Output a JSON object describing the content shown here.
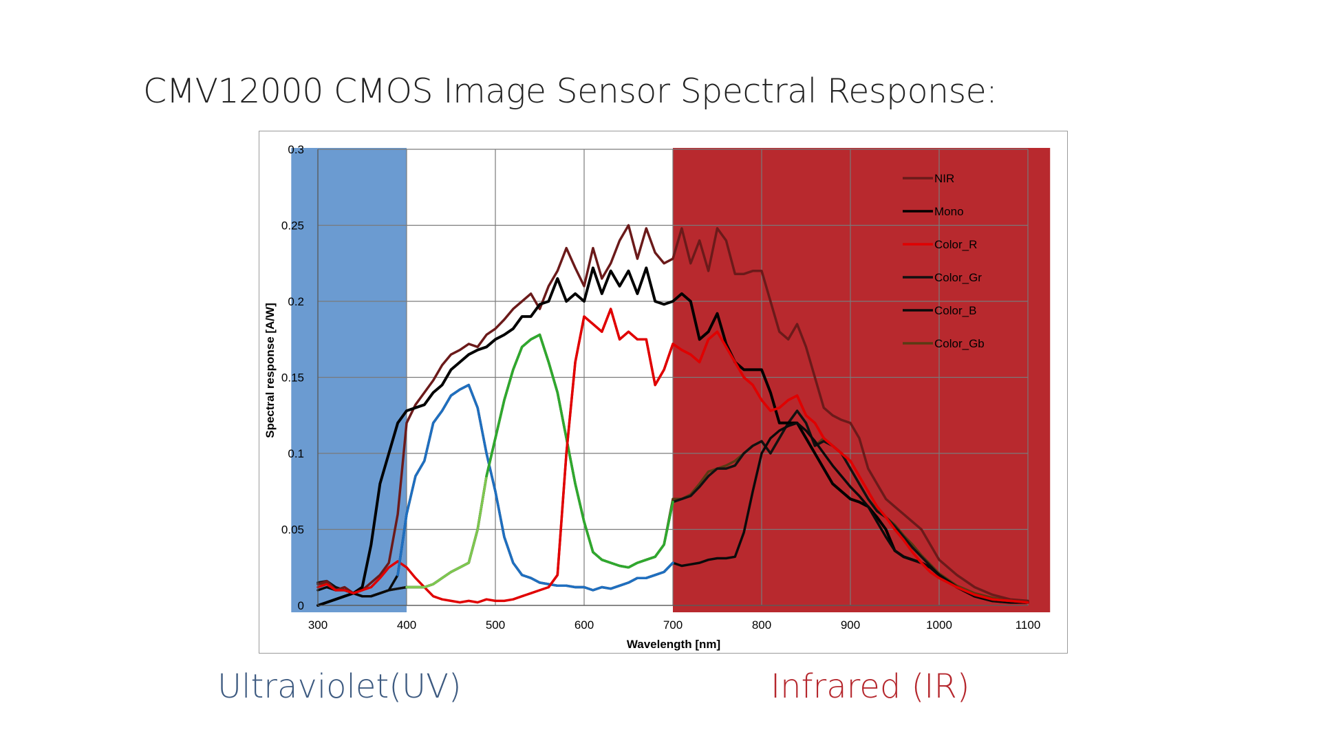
{
  "slide": {
    "title": "CMV12000 CMOS Image Sensor Spectral Response:",
    "uv_caption": "Ultraviolet(UV)",
    "ir_caption": "Infrared (IR)",
    "uv_color": "#3d5a80",
    "ir_color": "#b5272d"
  },
  "chart_data": {
    "type": "line",
    "title": "",
    "xlabel": "Wavelength [nm]",
    "ylabel": "Spectral response [A/W]",
    "xlim": [
      300,
      1100
    ],
    "ylim": [
      0,
      0.3
    ],
    "x_ticks": [
      300,
      400,
      500,
      600,
      700,
      800,
      900,
      1000,
      1100
    ],
    "x_tick_labels": [
      "300",
      "400",
      "500",
      "600",
      "700",
      "800",
      "900",
      "1000",
      "1100"
    ],
    "y_ticks": [
      0,
      0.05,
      0.1,
      0.15,
      0.2,
      0.25,
      0.3
    ],
    "y_tick_labels": [
      "0",
      "0.05",
      "0.1",
      "0.15",
      "0.2",
      "0.25",
      "0.3"
    ],
    "grid": true,
    "legend_position": "top-right",
    "shaded_regions": [
      {
        "label": "Ultraviolet(UV)",
        "x_from": 270,
        "x_to": 400,
        "color": "#6b9bd1"
      },
      {
        "label": "Infrared (IR)",
        "x_from": 700,
        "x_to": 1125,
        "color": "#b8292e"
      }
    ],
    "series": [
      {
        "name": "NIR",
        "color": "#6b1a1a",
        "x": [
          300,
          310,
          320,
          330,
          340,
          350,
          360,
          370,
          380,
          390,
          400,
          410,
          420,
          430,
          440,
          450,
          460,
          470,
          480,
          490,
          500,
          510,
          520,
          530,
          540,
          550,
          560,
          570,
          580,
          590,
          600,
          610,
          620,
          630,
          640,
          650,
          660,
          670,
          680,
          690,
          700,
          710,
          720,
          730,
          740,
          750,
          760,
          770,
          780,
          790,
          800,
          810,
          820,
          830,
          840,
          850,
          860,
          870,
          880,
          890,
          900,
          910,
          920,
          930,
          940,
          950,
          960,
          970,
          980,
          990,
          1000,
          1020,
          1040,
          1060,
          1080,
          1100
        ],
        "y": [
          0.014,
          0.016,
          0.01,
          0.012,
          0.008,
          0.01,
          0.015,
          0.02,
          0.028,
          0.06,
          0.12,
          0.132,
          0.14,
          0.148,
          0.158,
          0.165,
          0.168,
          0.172,
          0.17,
          0.178,
          0.182,
          0.188,
          0.195,
          0.2,
          0.205,
          0.195,
          0.21,
          0.22,
          0.235,
          0.222,
          0.21,
          0.235,
          0.215,
          0.225,
          0.24,
          0.25,
          0.228,
          0.248,
          0.232,
          0.225,
          0.228,
          0.248,
          0.225,
          0.24,
          0.22,
          0.248,
          0.24,
          0.218,
          0.218,
          0.22,
          0.22,
          0.2,
          0.18,
          0.175,
          0.185,
          0.17,
          0.15,
          0.13,
          0.125,
          0.122,
          0.12,
          0.11,
          0.09,
          0.08,
          0.07,
          0.065,
          0.06,
          0.055,
          0.05,
          0.04,
          0.03,
          0.02,
          0.012,
          0.007,
          0.004,
          0.003
        ]
      },
      {
        "name": "Mono",
        "color": "#000000",
        "x": [
          300,
          310,
          320,
          330,
          340,
          350,
          360,
          370,
          380,
          390,
          400,
          410,
          420,
          430,
          440,
          450,
          460,
          470,
          480,
          490,
          500,
          510,
          520,
          530,
          540,
          550,
          560,
          570,
          580,
          590,
          600,
          610,
          620,
          630,
          640,
          650,
          660,
          670,
          680,
          690,
          700,
          710,
          720,
          730,
          740,
          750,
          760,
          770,
          780,
          790,
          800,
          810,
          820,
          830,
          840,
          850,
          860,
          870,
          880,
          890,
          900,
          910,
          920,
          930,
          940,
          950,
          960,
          970,
          980,
          990,
          1000,
          1020,
          1040,
          1060,
          1080,
          1100
        ],
        "y": [
          0.0,
          0.002,
          0.004,
          0.006,
          0.008,
          0.012,
          0.04,
          0.08,
          0.1,
          0.12,
          0.128,
          0.13,
          0.132,
          0.14,
          0.145,
          0.155,
          0.16,
          0.165,
          0.168,
          0.17,
          0.175,
          0.178,
          0.182,
          0.19,
          0.19,
          0.198,
          0.2,
          0.215,
          0.2,
          0.205,
          0.2,
          0.222,
          0.205,
          0.22,
          0.21,
          0.22,
          0.205,
          0.222,
          0.2,
          0.198,
          0.2,
          0.205,
          0.2,
          0.175,
          0.18,
          0.192,
          0.172,
          0.16,
          0.155,
          0.155,
          0.155,
          0.14,
          0.12,
          0.12,
          0.12,
          0.11,
          0.1,
          0.09,
          0.08,
          0.075,
          0.07,
          0.068,
          0.065,
          0.058,
          0.05,
          0.036,
          0.032,
          0.03,
          0.028,
          0.025,
          0.02,
          0.012,
          0.006,
          0.003,
          0.002,
          0.002
        ]
      },
      {
        "name": "Color_R",
        "color": "#e00000",
        "x": [
          300,
          310,
          320,
          330,
          340,
          350,
          360,
          370,
          380,
          390,
          400,
          410,
          420,
          430,
          440,
          450,
          460,
          470,
          480,
          490,
          500,
          510,
          520,
          530,
          540,
          550,
          560,
          570,
          580,
          590,
          600,
          610,
          620,
          630,
          640,
          650,
          660,
          670,
          680,
          690,
          700,
          710,
          720,
          730,
          740,
          750,
          760,
          770,
          780,
          790,
          800,
          810,
          820,
          830,
          840,
          850,
          860,
          870,
          880,
          890,
          900,
          910,
          920,
          930,
          940,
          950,
          960,
          970,
          980,
          990,
          1000,
          1020,
          1040,
          1060,
          1080,
          1100
        ],
        "y": [
          0.012,
          0.014,
          0.01,
          0.01,
          0.008,
          0.01,
          0.012,
          0.018,
          0.025,
          0.029,
          0.025,
          0.018,
          0.012,
          0.006,
          0.004,
          0.003,
          0.002,
          0.003,
          0.002,
          0.004,
          0.003,
          0.003,
          0.004,
          0.006,
          0.008,
          0.01,
          0.012,
          0.02,
          0.1,
          0.16,
          0.19,
          0.185,
          0.18,
          0.195,
          0.175,
          0.18,
          0.175,
          0.175,
          0.145,
          0.155,
          0.172,
          0.168,
          0.165,
          0.16,
          0.175,
          0.18,
          0.17,
          0.16,
          0.15,
          0.145,
          0.135,
          0.128,
          0.13,
          0.135,
          0.138,
          0.125,
          0.12,
          0.11,
          0.105,
          0.1,
          0.095,
          0.085,
          0.075,
          0.065,
          0.058,
          0.05,
          0.043,
          0.035,
          0.028,
          0.022,
          0.018,
          0.012,
          0.007,
          0.004,
          0.003,
          0.002
        ]
      },
      {
        "name": "Color_Gr",
        "color": "#111111",
        "x": [
          300,
          310,
          320,
          330,
          340,
          350,
          360,
          370,
          380,
          390,
          400,
          410,
          420,
          430,
          440,
          450,
          460,
          470,
          480,
          490,
          500,
          510,
          520,
          530,
          540,
          550,
          560,
          570,
          580,
          590,
          600,
          610,
          620,
          630,
          640,
          650,
          660,
          670,
          680,
          690,
          700,
          710,
          720,
          730,
          740,
          750,
          760,
          770,
          780,
          790,
          800,
          810,
          820,
          830,
          840,
          850,
          860,
          870,
          880,
          890,
          900,
          910,
          920,
          930,
          940,
          950,
          960,
          970,
          980,
          990,
          1000,
          1020,
          1040,
          1060,
          1080,
          1100
        ],
        "y": [
          0.015,
          0.016,
          0.012,
          0.01,
          0.008,
          0.006,
          0.006,
          0.008,
          0.01,
          0.011,
          0.012,
          0.012,
          0.012,
          0.014,
          0.018,
          0.022,
          0.025,
          0.028,
          0.05,
          0.085,
          0.11,
          0.135,
          0.155,
          0.17,
          0.175,
          0.178,
          0.16,
          0.14,
          0.11,
          0.08,
          0.055,
          0.035,
          0.03,
          0.028,
          0.026,
          0.025,
          0.028,
          0.03,
          0.032,
          0.04,
          0.068,
          0.07,
          0.072,
          0.078,
          0.085,
          0.09,
          0.09,
          0.092,
          0.1,
          0.105,
          0.108,
          0.1,
          0.11,
          0.12,
          0.128,
          0.12,
          0.105,
          0.108,
          0.105,
          0.1,
          0.09,
          0.08,
          0.07,
          0.062,
          0.058,
          0.052,
          0.045,
          0.038,
          0.032,
          0.026,
          0.02,
          0.012,
          0.007,
          0.004,
          0.003,
          0.002
        ]
      },
      {
        "name": "Color_B",
        "color": "#0a0a0a",
        "x": [
          300,
          310,
          320,
          330,
          340,
          350,
          360,
          370,
          380,
          390,
          400,
          410,
          420,
          430,
          440,
          450,
          460,
          470,
          480,
          490,
          500,
          510,
          520,
          530,
          540,
          550,
          560,
          570,
          580,
          590,
          600,
          610,
          620,
          630,
          640,
          650,
          660,
          670,
          680,
          690,
          700,
          710,
          720,
          730,
          740,
          750,
          760,
          770,
          780,
          790,
          800,
          810,
          820,
          830,
          840,
          850,
          860,
          870,
          880,
          890,
          900,
          910,
          920,
          930,
          940,
          950,
          960,
          970,
          980,
          990,
          1000,
          1020,
          1040,
          1060,
          1080,
          1100
        ],
        "y": [
          0.01,
          0.012,
          0.01,
          0.01,
          0.008,
          0.006,
          0.006,
          0.008,
          0.01,
          0.02,
          0.06,
          0.085,
          0.095,
          0.12,
          0.128,
          0.138,
          0.142,
          0.145,
          0.13,
          0.1,
          0.075,
          0.045,
          0.028,
          0.02,
          0.018,
          0.015,
          0.014,
          0.013,
          0.013,
          0.012,
          0.012,
          0.01,
          0.012,
          0.011,
          0.013,
          0.015,
          0.018,
          0.018,
          0.02,
          0.022,
          0.028,
          0.026,
          0.027,
          0.028,
          0.03,
          0.031,
          0.031,
          0.032,
          0.048,
          0.075,
          0.1,
          0.11,
          0.115,
          0.118,
          0.12,
          0.115,
          0.108,
          0.1,
          0.092,
          0.085,
          0.078,
          0.072,
          0.065,
          0.055,
          0.045,
          0.036,
          0.032,
          0.03,
          0.028,
          0.025,
          0.02,
          0.012,
          0.006,
          0.003,
          0.002,
          0.002
        ]
      },
      {
        "name": "Color_Gb",
        "color": "#5a3a14",
        "x": [
          300,
          310,
          320,
          330,
          340,
          350,
          360,
          370,
          380,
          390,
          400,
          410,
          420,
          430,
          440,
          450,
          460,
          470,
          480,
          490,
          500,
          510,
          520,
          530,
          540,
          550,
          560,
          570,
          580,
          590,
          600,
          610,
          620,
          630,
          640,
          650,
          660,
          670,
          680,
          690,
          700,
          710,
          720,
          730,
          740,
          750,
          760,
          770,
          780,
          790,
          800,
          810,
          820,
          830,
          840,
          850,
          860,
          870,
          880,
          890,
          900,
          910,
          920,
          930,
          940,
          950,
          960,
          970,
          980,
          990,
          1000,
          1020,
          1040,
          1060,
          1080,
          1100
        ],
        "y": [
          0.014,
          0.015,
          0.012,
          0.01,
          0.008,
          0.006,
          0.006,
          0.008,
          0.01,
          0.011,
          0.012,
          0.012,
          0.012,
          0.014,
          0.018,
          0.022,
          0.025,
          0.028,
          0.05,
          0.085,
          0.11,
          0.135,
          0.155,
          0.17,
          0.175,
          0.178,
          0.16,
          0.14,
          0.11,
          0.08,
          0.055,
          0.035,
          0.03,
          0.028,
          0.026,
          0.025,
          0.028,
          0.03,
          0.032,
          0.04,
          0.07,
          0.07,
          0.073,
          0.08,
          0.088,
          0.09,
          0.092,
          0.095,
          0.1,
          0.105,
          0.108,
          0.1,
          0.11,
          0.12,
          0.128,
          0.12,
          0.105,
          0.11,
          0.105,
          0.1,
          0.09,
          0.08,
          0.07,
          0.063,
          0.058,
          0.053,
          0.046,
          0.04,
          0.033,
          0.027,
          0.021,
          0.013,
          0.008,
          0.005,
          0.003,
          0.002
        ]
      }
    ],
    "highlight_series": [
      {
        "name_ref": "Color_B",
        "color": "#1f6fc0",
        "x_from": 390,
        "x_to": 700
      },
      {
        "name_ref": "Color_Gr",
        "color": "#7ec850",
        "x_from": 400,
        "x_to": 700
      },
      {
        "name_ref": "Color_Gr",
        "color": "#2fa82f",
        "x_from": 490,
        "x_to": 700
      }
    ]
  }
}
